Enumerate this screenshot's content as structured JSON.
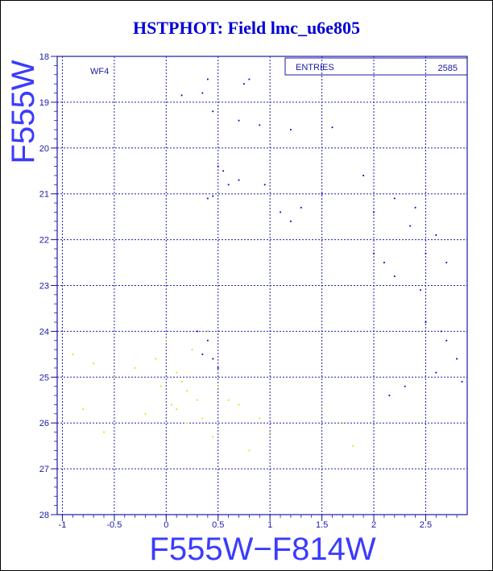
{
  "chart_data": {
    "type": "scatter",
    "title": "HSTPHOT: Field lmc_u6e805",
    "xlabel": "F555W−F814W",
    "ylabel": "F555W",
    "xlim": [
      -1.05,
      2.9
    ],
    "ylim": [
      28,
      18
    ],
    "y_inverted": true,
    "xticks": [
      "-1",
      "-0.5",
      "0",
      "0.5",
      "1",
      "1.5",
      "2",
      "2.5"
    ],
    "yticks": [
      "18",
      "19",
      "20",
      "21",
      "22",
      "23",
      "24",
      "25",
      "26",
      "27",
      "28"
    ],
    "grid": true,
    "annotation": "WF4",
    "stats_box": {
      "label": "ENTRIES",
      "value": "2585"
    },
    "series": [
      {
        "color": "#0000cc",
        "values": [
          [
            0.4,
            18.5
          ],
          [
            0.35,
            18.8
          ],
          [
            0.15,
            18.85
          ],
          [
            0.8,
            18.5
          ],
          [
            0.75,
            18.6
          ],
          [
            0.45,
            19.2
          ],
          [
            0.7,
            19.4
          ],
          [
            0.9,
            19.5
          ],
          [
            1.2,
            19.6
          ],
          [
            1.6,
            19.55
          ],
          [
            0.5,
            20.4
          ],
          [
            0.55,
            20.5
          ],
          [
            0.7,
            20.7
          ],
          [
            0.6,
            20.8
          ],
          [
            0.4,
            21.1
          ],
          [
            0.45,
            21.05
          ],
          [
            0.95,
            20.8
          ],
          [
            1.5,
            21.0
          ],
          [
            1.9,
            20.6
          ],
          [
            2.2,
            21.1
          ],
          [
            2.0,
            21.4
          ],
          [
            1.1,
            21.4
          ],
          [
            1.2,
            21.6
          ],
          [
            2.35,
            21.7
          ],
          [
            2.5,
            22.3
          ],
          [
            2.1,
            22.5
          ],
          [
            2.7,
            22.5
          ],
          [
            2.2,
            22.8
          ],
          [
            2.45,
            23.1
          ],
          [
            2.5,
            23.8
          ],
          [
            2.65,
            24.0
          ],
          [
            2.7,
            24.2
          ],
          [
            2.8,
            24.6
          ],
          [
            2.6,
            24.9
          ],
          [
            2.85,
            25.1
          ],
          [
            2.3,
            25.2
          ],
          [
            2.15,
            25.4
          ],
          [
            2.0,
            22.3
          ],
          [
            2.4,
            21.3
          ],
          [
            2.6,
            21.9
          ],
          [
            1.3,
            21.3
          ],
          [
            0.3,
            24.0
          ],
          [
            0.4,
            24.2
          ],
          [
            0.35,
            24.5
          ],
          [
            0.45,
            24.6
          ],
          [
            0.5,
            24.8
          ]
        ]
      },
      {
        "color": "#dede00",
        "values": [
          [
            -0.9,
            24.5
          ],
          [
            -0.7,
            24.7
          ],
          [
            -0.5,
            25.0
          ],
          [
            -0.3,
            24.8
          ],
          [
            -0.1,
            24.6
          ],
          [
            0.0,
            24.2
          ],
          [
            0.1,
            24.9
          ],
          [
            0.2,
            25.3
          ],
          [
            0.3,
            25.5
          ],
          [
            0.25,
            24.4
          ],
          [
            0.15,
            25.1
          ],
          [
            0.05,
            25.6
          ],
          [
            -0.2,
            25.8
          ],
          [
            -0.6,
            26.2
          ],
          [
            -0.8,
            25.7
          ],
          [
            0.35,
            25.9
          ],
          [
            0.45,
            26.3
          ],
          [
            0.6,
            25.5
          ],
          [
            0.8,
            26.6
          ],
          [
            1.0,
            26.2
          ],
          [
            1.5,
            25.7
          ],
          [
            1.7,
            26.0
          ],
          [
            1.8,
            26.5
          ],
          [
            0.4,
            24.0
          ],
          [
            0.5,
            25.2
          ],
          [
            0.7,
            25.6
          ],
          [
            0.9,
            25.9
          ],
          [
            0.2,
            26.0
          ],
          [
            -0.05,
            25.2
          ],
          [
            0.1,
            25.7
          ]
        ]
      }
    ]
  }
}
